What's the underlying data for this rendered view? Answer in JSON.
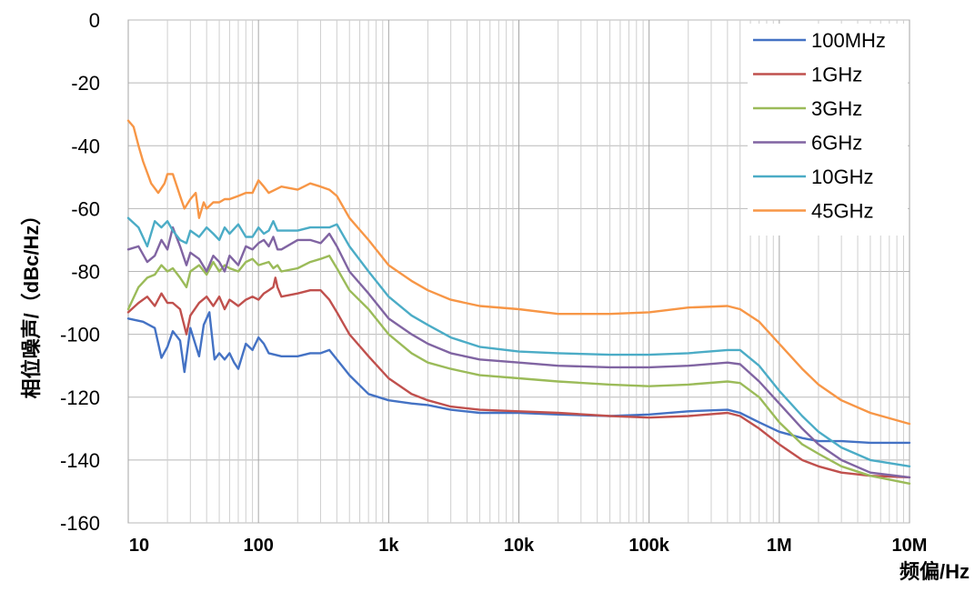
{
  "chart_data": {
    "type": "line",
    "title": "",
    "xlabel": "频偏/Hz",
    "ylabel": "相位噪声/（dBc/Hz）",
    "x_scale": "log",
    "xlim": [
      10,
      10000000
    ],
    "ylim": [
      -160,
      0
    ],
    "x_ticks": [
      10,
      100,
      1000,
      10000,
      100000,
      1000000,
      10000000
    ],
    "x_tick_labels": [
      "10",
      "100",
      "1k",
      "10k",
      "100k",
      "1M",
      "10M"
    ],
    "y_ticks": [
      0,
      -20,
      -40,
      -60,
      -80,
      -100,
      -120,
      -140,
      -160
    ],
    "y_tick_labels": [
      "0",
      "-20",
      "-40",
      "-60",
      "-80",
      "-100",
      "-120",
      "-140",
      "-160"
    ],
    "grid": true,
    "legend_position": "top-right",
    "series": [
      {
        "name": "100MHz",
        "color": "#4472C4",
        "x": [
          10,
          13,
          16,
          18,
          20,
          22,
          25,
          27,
          30,
          35,
          38,
          42,
          46,
          50,
          55,
          60,
          65,
          70,
          80,
          90,
          100,
          110,
          120,
          150,
          200,
          250,
          300,
          350,
          400,
          500,
          700,
          1000,
          1500,
          2000,
          3000,
          5000,
          10000,
          20000,
          50000,
          100000,
          200000,
          400000,
          500000,
          700000,
          1000000,
          1500000,
          2000000,
          3000000,
          5000000,
          10000000
        ],
        "y": [
          -95,
          -96,
          -98,
          -107.5,
          -104,
          -99,
          -102,
          -112,
          -98,
          -107,
          -97,
          -93,
          -108,
          -106,
          -108,
          -106,
          -109,
          -111,
          -103,
          -105,
          -101,
          -103,
          -106,
          -107,
          -107,
          -106,
          -106,
          -105,
          -108,
          -113,
          -119,
          -121,
          -122,
          -122.5,
          -124,
          -125,
          -125,
          -125.5,
          -126,
          -125.5,
          -124.5,
          -124,
          -125,
          -128,
          -131,
          -133,
          -134,
          -134,
          -134.5,
          -134.5
        ]
      },
      {
        "name": "1GHz",
        "color": "#C0504D",
        "x": [
          10,
          12,
          14,
          16,
          18,
          20,
          22,
          25,
          28,
          30,
          35,
          40,
          45,
          50,
          55,
          60,
          65,
          70,
          80,
          90,
          100,
          110,
          120,
          130,
          135,
          140,
          150,
          200,
          250,
          300,
          350,
          400,
          500,
          700,
          1000,
          1500,
          2000,
          3000,
          5000,
          10000,
          20000,
          50000,
          100000,
          200000,
          400000,
          500000,
          700000,
          1000000,
          1500000,
          2000000,
          3000000,
          5000000,
          10000000
        ],
        "y": [
          -93,
          -90,
          -88,
          -91,
          -87,
          -90,
          -90,
          -92,
          -100,
          -94,
          -90,
          -88,
          -91,
          -88,
          -92,
          -89,
          -90,
          -91,
          -89,
          -88,
          -89,
          -87,
          -86,
          -85,
          -82,
          -85,
          -88,
          -87,
          -86,
          -86,
          -89,
          -93,
          -100,
          -107,
          -114,
          -119,
          -121,
          -123,
          -124,
          -124.5,
          -125,
          -126,
          -126.5,
          -126,
          -125,
          -126,
          -130,
          -135,
          -140,
          -142,
          -144,
          -145,
          -145.5
        ]
      },
      {
        "name": "3GHz",
        "color": "#9BBB59",
        "x": [
          10,
          12,
          14,
          16,
          18,
          20,
          22,
          25,
          28,
          30,
          35,
          40,
          45,
          50,
          55,
          60,
          70,
          80,
          90,
          100,
          120,
          130,
          140,
          150,
          200,
          250,
          300,
          350,
          400,
          500,
          700,
          1000,
          1500,
          2000,
          3000,
          5000,
          10000,
          20000,
          50000,
          100000,
          200000,
          400000,
          500000,
          700000,
          1000000,
          1500000,
          2000000,
          3000000,
          5000000,
          10000000
        ],
        "y": [
          -92,
          -85,
          -82,
          -81,
          -78,
          -80,
          -79,
          -82,
          -85,
          -80,
          -78,
          -81,
          -77,
          -80,
          -78,
          -79,
          -80,
          -77,
          -76,
          -78,
          -77,
          -79,
          -78,
          -80,
          -79,
          -77,
          -76,
          -75,
          -79,
          -86,
          -92,
          -100,
          -106,
          -109,
          -111,
          -113,
          -114,
          -115,
          -116,
          -116.5,
          -116,
          -115,
          -115.5,
          -120,
          -128,
          -135,
          -138,
          -142,
          -145,
          -147.5
        ]
      },
      {
        "name": "6GHz",
        "color": "#8064A2",
        "x": [
          10,
          12,
          14,
          16,
          18,
          20,
          22,
          25,
          28,
          30,
          35,
          40,
          45,
          50,
          55,
          60,
          70,
          80,
          90,
          100,
          110,
          120,
          130,
          140,
          150,
          200,
          250,
          300,
          350,
          400,
          500,
          700,
          1000,
          1500,
          2000,
          3000,
          5000,
          10000,
          20000,
          50000,
          100000,
          200000,
          400000,
          500000,
          700000,
          1000000,
          1500000,
          2000000,
          3000000,
          5000000,
          10000000
        ],
        "y": [
          -73,
          -72,
          -77,
          -75,
          -70,
          -73,
          -66,
          -72,
          -78,
          -74,
          -76,
          -80,
          -75,
          -77,
          -80,
          -75,
          -78,
          -72,
          -73,
          -71,
          -70,
          -72,
          -69,
          -73,
          -73,
          -70,
          -70,
          -71,
          -68,
          -72,
          -80,
          -87,
          -95,
          -100,
          -103,
          -106,
          -108,
          -109,
          -110,
          -110.5,
          -110.5,
          -110,
          -109,
          -109.5,
          -115,
          -122,
          -130,
          -135,
          -140,
          -144,
          -145.5
        ]
      },
      {
        "name": "10GHz",
        "color": "#4BACC6",
        "x": [
          10,
          12,
          14,
          16,
          18,
          20,
          22,
          25,
          28,
          30,
          35,
          40,
          45,
          50,
          55,
          60,
          70,
          80,
          90,
          100,
          110,
          120,
          130,
          140,
          150,
          200,
          250,
          300,
          350,
          400,
          500,
          700,
          1000,
          1500,
          2000,
          3000,
          5000,
          10000,
          20000,
          50000,
          100000,
          200000,
          400000,
          500000,
          700000,
          1000000,
          1500000,
          2000000,
          3000000,
          5000000,
          10000000
        ],
        "y": [
          -63,
          -66,
          -72,
          -64,
          -66,
          -64,
          -67,
          -70,
          -71,
          -67,
          -69,
          -66,
          -68,
          -70,
          -66,
          -68,
          -65,
          -69,
          -69,
          -66,
          -68,
          -67,
          -64,
          -67,
          -67,
          -67,
          -66,
          -66,
          -66,
          -65,
          -72,
          -80,
          -88,
          -94,
          -97,
          -101,
          -104,
          -105.5,
          -106,
          -106.5,
          -106.5,
          -106,
          -105,
          -105,
          -110,
          -118,
          -126,
          -131,
          -136,
          -140,
          -142
        ]
      },
      {
        "name": "45GHz",
        "color": "#F79646",
        "x": [
          10,
          11,
          12,
          13,
          15,
          17,
          19,
          20,
          22,
          25,
          27,
          30,
          33,
          35,
          38,
          40,
          45,
          50,
          55,
          60,
          70,
          80,
          90,
          100,
          110,
          120,
          150,
          200,
          250,
          300,
          350,
          400,
          500,
          700,
          1000,
          1500,
          2000,
          3000,
          5000,
          10000,
          20000,
          50000,
          100000,
          200000,
          400000,
          500000,
          700000,
          1000000,
          1500000,
          2000000,
          3000000,
          5000000,
          10000000
        ],
        "y": [
          -32,
          -34,
          -40,
          -45,
          -52,
          -55,
          -52,
          -49,
          -49,
          -56,
          -60,
          -57,
          -55,
          -63,
          -58,
          -60,
          -58,
          -58,
          -57,
          -57,
          -56,
          -55,
          -55,
          -51,
          -53,
          -55,
          -53,
          -54,
          -52,
          -53,
          -54,
          -56,
          -63,
          -70,
          -78,
          -83,
          -86,
          -89,
          -91,
          -92,
          -93.5,
          -93.5,
          -93,
          -91.5,
          -91,
          -92,
          -96,
          -103,
          -111,
          -116,
          -121,
          -125,
          -128.5
        ]
      }
    ]
  }
}
